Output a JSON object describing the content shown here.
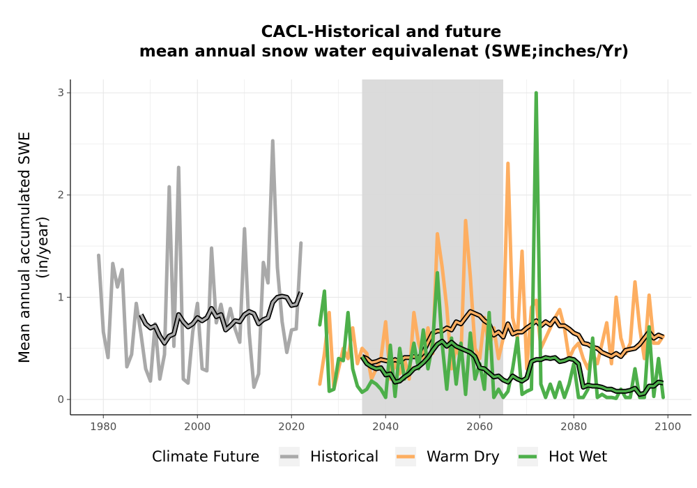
{
  "chart_data": {
    "type": "line",
    "title": "CACL-Historical and future",
    "subtitle": "mean annual snow water equivalenat (SWE;inches/Yr)",
    "ylabel_line1": "Mean annual accumulated SWE",
    "ylabel_line2": "(in/year)",
    "xlabel": "",
    "xlim": [
      1973,
      2105
    ],
    "ylim": [
      -0.15,
      3.13
    ],
    "x_ticks": [
      1980,
      2000,
      2020,
      2040,
      2060,
      2080,
      2100
    ],
    "y_ticks": [
      0,
      1,
      2,
      3
    ],
    "grid": true,
    "reference_period": [
      2035,
      2065
    ],
    "legend": {
      "title": "Climate Future",
      "position": "bottom",
      "entries": [
        {
          "label": "Historical",
          "color": "#a9a9a9"
        },
        {
          "label": "Warm Dry",
          "color": "#fdae61"
        },
        {
          "label": "Hot Wet",
          "color": "#4daf4a"
        }
      ]
    },
    "series": [
      {
        "name": "Historical",
        "color": "#a9a9a9",
        "x": [
          1979,
          1980,
          1981,
          1982,
          1983,
          1984,
          1985,
          1986,
          1987,
          1988,
          1989,
          1990,
          1991,
          1992,
          1993,
          1994,
          1995,
          1996,
          1997,
          1998,
          1999,
          2000,
          2001,
          2002,
          2003,
          2004,
          2005,
          2006,
          2007,
          2008,
          2009,
          2010,
          2011,
          2012,
          2013,
          2014,
          2015,
          2016,
          2017,
          2018,
          2019,
          2020,
          2021,
          2022
        ],
        "values": [
          1.41,
          0.66,
          0.41,
          1.33,
          1.1,
          1.27,
          0.32,
          0.44,
          0.94,
          0.64,
          0.3,
          0.18,
          0.74,
          0.2,
          0.44,
          2.08,
          0.52,
          2.27,
          0.2,
          0.16,
          0.66,
          0.94,
          0.3,
          0.28,
          1.48,
          0.75,
          0.93,
          0.7,
          0.89,
          0.69,
          0.56,
          1.67,
          0.65,
          0.12,
          0.25,
          1.34,
          1.14,
          2.53,
          1.29,
          0.76,
          0.46,
          0.68,
          0.69,
          1.53
        ]
      },
      {
        "name": "Historical smoothed",
        "color": "#a9a9a9",
        "x": [
          1988,
          1989,
          1990,
          1991,
          1992,
          1993,
          1994,
          1995,
          1996,
          1997,
          1998,
          1999,
          2000,
          2001,
          2002,
          2003,
          2004,
          2005,
          2006,
          2007,
          2008,
          2009,
          2010,
          2011,
          2012,
          2013,
          2014,
          2015,
          2016,
          2017,
          2018,
          2019,
          2020,
          2021,
          2022
        ],
        "values": [
          0.83,
          0.74,
          0.7,
          0.72,
          0.62,
          0.55,
          0.62,
          0.64,
          0.83,
          0.76,
          0.71,
          0.74,
          0.8,
          0.77,
          0.8,
          0.89,
          0.81,
          0.83,
          0.68,
          0.72,
          0.77,
          0.76,
          0.83,
          0.86,
          0.84,
          0.74,
          0.78,
          0.8,
          0.95,
          1.0,
          1.01,
          1.0,
          0.92,
          0.93,
          1.05
        ]
      },
      {
        "name": "Warm Dry",
        "color": "#fdae61",
        "x": [
          2026,
          2027,
          2028,
          2029,
          2030,
          2031,
          2032,
          2033,
          2034,
          2035,
          2036,
          2037,
          2038,
          2039,
          2040,
          2041,
          2042,
          2043,
          2044,
          2045,
          2046,
          2047,
          2048,
          2049,
          2050,
          2051,
          2052,
          2053,
          2054,
          2055,
          2056,
          2057,
          2058,
          2059,
          2060,
          2061,
          2062,
          2063,
          2064,
          2065,
          2066,
          2067,
          2068,
          2069,
          2070,
          2071,
          2072,
          2073,
          2074,
          2075,
          2076,
          2077,
          2078,
          2079,
          2080,
          2081,
          2082,
          2083,
          2084,
          2085,
          2086,
          2087,
          2088,
          2089,
          2090,
          2091,
          2092,
          2093,
          2094,
          2095,
          2096,
          2097,
          2098,
          2099
        ],
        "values": [
          0.15,
          0.45,
          0.85,
          0.1,
          0.3,
          0.5,
          0.4,
          0.7,
          0.35,
          0.5,
          0.45,
          0.2,
          0.3,
          0.4,
          0.76,
          0.2,
          0.35,
          0.25,
          0.4,
          0.2,
          0.85,
          0.55,
          0.4,
          0.7,
          0.45,
          1.62,
          1.3,
          0.9,
          0.3,
          0.5,
          0.4,
          1.75,
          1.2,
          0.5,
          0.4,
          0.8,
          0.5,
          0.7,
          0.4,
          0.6,
          2.31,
          0.8,
          0.6,
          1.45,
          0.3,
          0.9,
          0.97,
          0.5,
          0.6,
          0.7,
          0.8,
          0.88,
          0.7,
          0.4,
          0.5,
          0.55,
          0.4,
          0.3,
          0.45,
          0.35,
          0.55,
          0.75,
          0.35,
          1.0,
          0.6,
          0.45,
          0.55,
          1.15,
          0.7,
          0.4,
          1.02,
          0.55,
          0.55,
          0.62
        ]
      },
      {
        "name": "Warm Dry smoothed",
        "color": "#fdae61",
        "x": [
          2035,
          2036,
          2037,
          2038,
          2039,
          2040,
          2041,
          2042,
          2043,
          2044,
          2045,
          2046,
          2047,
          2048,
          2049,
          2050,
          2051,
          2052,
          2053,
          2054,
          2055,
          2056,
          2057,
          2058,
          2059,
          2060,
          2061,
          2062,
          2063,
          2064,
          2065,
          2066,
          2067,
          2068,
          2069,
          2070,
          2071,
          2072,
          2073,
          2074,
          2075,
          2076,
          2077,
          2078,
          2079,
          2080,
          2081,
          2082,
          2083,
          2084,
          2085,
          2086,
          2087,
          2088,
          2089,
          2090,
          2091,
          2092,
          2093,
          2094,
          2095,
          2096,
          2097,
          2098,
          2099
        ],
        "values": [
          0.42,
          0.4,
          0.36,
          0.37,
          0.39,
          0.38,
          0.37,
          0.39,
          0.37,
          0.41,
          0.41,
          0.42,
          0.41,
          0.46,
          0.56,
          0.65,
          0.67,
          0.67,
          0.7,
          0.68,
          0.76,
          0.74,
          0.8,
          0.86,
          0.84,
          0.82,
          0.77,
          0.74,
          0.63,
          0.66,
          0.61,
          0.74,
          0.64,
          0.66,
          0.66,
          0.7,
          0.73,
          0.77,
          0.72,
          0.76,
          0.73,
          0.79,
          0.72,
          0.72,
          0.69,
          0.65,
          0.63,
          0.55,
          0.54,
          0.51,
          0.5,
          0.46,
          0.44,
          0.42,
          0.45,
          0.42,
          0.48,
          0.49,
          0.5,
          0.54,
          0.6,
          0.66,
          0.6,
          0.63,
          0.61
        ]
      },
      {
        "name": "Hot Wet",
        "color": "#4daf4a",
        "x": [
          2026,
          2027,
          2028,
          2029,
          2030,
          2031,
          2032,
          2033,
          2034,
          2035,
          2036,
          2037,
          2038,
          2039,
          2040,
          2041,
          2042,
          2043,
          2044,
          2045,
          2046,
          2047,
          2048,
          2049,
          2050,
          2051,
          2052,
          2053,
          2054,
          2055,
          2056,
          2057,
          2058,
          2059,
          2060,
          2061,
          2062,
          2063,
          2064,
          2065,
          2066,
          2067,
          2068,
          2069,
          2070,
          2071,
          2072,
          2073,
          2074,
          2075,
          2076,
          2077,
          2078,
          2079,
          2080,
          2081,
          2082,
          2083,
          2084,
          2085,
          2086,
          2087,
          2088,
          2089,
          2090,
          2091,
          2092,
          2093,
          2094,
          2095,
          2096,
          2097,
          2098,
          2099
        ],
        "values": [
          0.73,
          1.06,
          0.08,
          0.1,
          0.4,
          0.38,
          0.85,
          0.3,
          0.13,
          0.07,
          0.1,
          0.18,
          0.15,
          0.1,
          0.02,
          0.53,
          0.03,
          0.5,
          0.2,
          0.3,
          0.55,
          0.3,
          0.68,
          0.3,
          0.55,
          1.24,
          0.55,
          0.1,
          0.6,
          0.15,
          0.55,
          0.05,
          0.65,
          0.2,
          0.35,
          0.1,
          0.85,
          0.02,
          0.1,
          0.02,
          0.08,
          0.3,
          0.6,
          0.05,
          0.08,
          0.1,
          3.0,
          0.15,
          0.02,
          0.15,
          0.02,
          0.17,
          0.02,
          0.15,
          0.35,
          0.02,
          0.02,
          0.1,
          0.6,
          0.02,
          0.05,
          0.02,
          0.02,
          0.01,
          0.1,
          0.02,
          0.02,
          0.3,
          0.02,
          0.02,
          0.71,
          0.03,
          0.4,
          0.02
        ]
      },
      {
        "name": "Hot Wet smoothed",
        "color": "#4daf4a",
        "x": [
          2035,
          2036,
          2037,
          2038,
          2039,
          2040,
          2041,
          2042,
          2043,
          2044,
          2045,
          2046,
          2047,
          2048,
          2049,
          2050,
          2051,
          2052,
          2053,
          2054,
          2055,
          2056,
          2057,
          2058,
          2059,
          2060,
          2061,
          2062,
          2063,
          2064,
          2065,
          2066,
          2067,
          2068,
          2069,
          2070,
          2071,
          2072,
          2073,
          2074,
          2075,
          2076,
          2077,
          2078,
          2079,
          2080,
          2081,
          2082,
          2083,
          2084,
          2085,
          2086,
          2087,
          2088,
          2089,
          2090,
          2091,
          2092,
          2093,
          2094,
          2095,
          2096,
          2097,
          2098,
          2099
        ],
        "values": [
          0.42,
          0.35,
          0.32,
          0.3,
          0.31,
          0.24,
          0.25,
          0.17,
          0.18,
          0.22,
          0.25,
          0.3,
          0.32,
          0.36,
          0.41,
          0.48,
          0.54,
          0.57,
          0.52,
          0.56,
          0.52,
          0.5,
          0.48,
          0.46,
          0.42,
          0.31,
          0.3,
          0.26,
          0.22,
          0.23,
          0.19,
          0.17,
          0.23,
          0.2,
          0.18,
          0.21,
          0.37,
          0.39,
          0.39,
          0.41,
          0.4,
          0.41,
          0.37,
          0.38,
          0.4,
          0.39,
          0.35,
          0.12,
          0.14,
          0.13,
          0.13,
          0.12,
          0.1,
          0.1,
          0.08,
          0.08,
          0.08,
          0.09,
          0.11,
          0.05,
          0.06,
          0.13,
          0.13,
          0.17,
          0.16
        ]
      }
    ]
  }
}
